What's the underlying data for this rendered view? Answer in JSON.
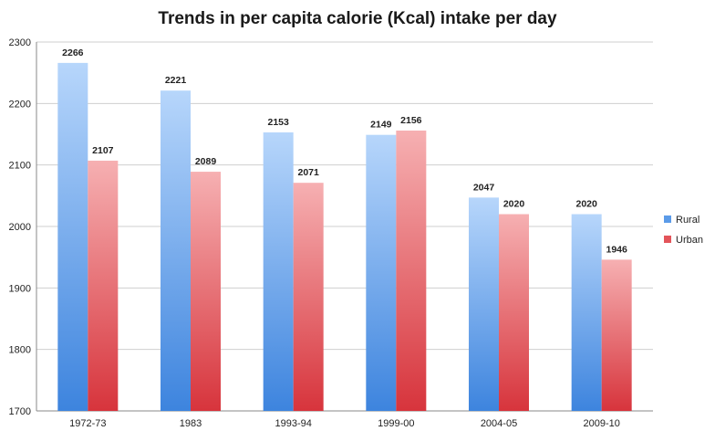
{
  "chart_data": {
    "type": "bar",
    "title": "Trends in per capita calorie (Kcal) intake per day",
    "xlabel": "",
    "ylabel": "",
    "categories": [
      "1972-73",
      "1983",
      "1993-94",
      "1999-00",
      "2004-05",
      "2009-10"
    ],
    "series": [
      {
        "name": "Rural",
        "values": [
          2266,
          2221,
          2153,
          2149,
          2047,
          2020
        ],
        "color": "#5b9be8"
      },
      {
        "name": "Urban",
        "values": [
          2107,
          2089,
          2071,
          2156,
          2020,
          1946
        ],
        "color": "#e3545a"
      }
    ],
    "ylim": [
      1700,
      2300
    ],
    "yticks": [
      1700,
      1800,
      1900,
      2000,
      2100,
      2200,
      2300
    ],
    "grid": true,
    "legend_position": "right"
  }
}
